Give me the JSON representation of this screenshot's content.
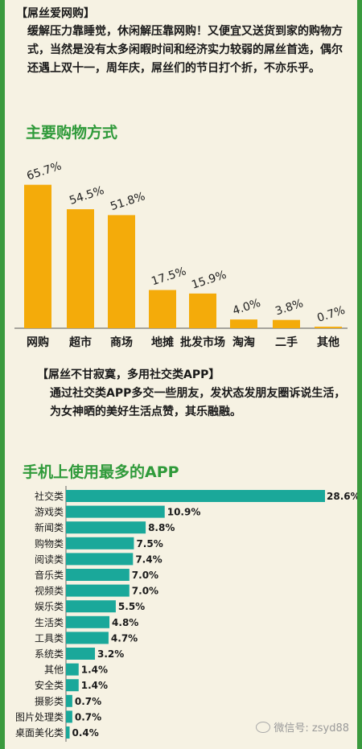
{
  "section1": {
    "heading": "【屌丝爱网购】",
    "paragraph": "缓解压力靠睡觉，休闲解压靠网购！又便宜又送货到家的购物方式，当然是没有太多闲暇时间和经济实力较弱的屌丝首选，偶尔还遇上双十一，周年庆，屌丝们的节日打个折，不亦乐乎。"
  },
  "section2": {
    "title": "主要购物方式"
  },
  "section3": {
    "heading": "【屌丝不甘寂寞，多用社交类APP】",
    "paragraph": "通过社交类APP多交一些朋友，发状态发朋友圈诉说生活，为女神晒的美好生活点赞，其乐融融。"
  },
  "section4": {
    "title": "手机上使用最多的APP"
  },
  "watermark": "微信号: zsyd88",
  "colors": {
    "bar": "#f4ab0a",
    "hbar": "#1aa89a",
    "title": "#2f9a3a"
  },
  "chart_data": [
    {
      "type": "bar",
      "categories": [
        "网购",
        "超市",
        "商场",
        "地摊",
        "批发市场",
        "淘淘",
        "二手",
        "其他"
      ],
      "values": [
        65.7,
        54.5,
        51.8,
        17.5,
        15.9,
        4.0,
        3.8,
        0.7
      ],
      "labels": [
        "65.7%",
        "54.5%",
        "51.8%",
        "17.5%",
        "15.9%",
        "4.0%",
        "3.8%",
        "0.7%"
      ],
      "title": "主要购物方式",
      "ylim": [
        0,
        70
      ]
    },
    {
      "type": "bar",
      "orientation": "horizontal",
      "categories": [
        "社交类",
        "游戏类",
        "新闻类",
        "购物类",
        "阅读类",
        "音乐类",
        "视频类",
        "娱乐类",
        "生活类",
        "工具类",
        "系统类",
        "其他",
        "安全类",
        "摄影类",
        "图片处理类",
        "桌面美化类"
      ],
      "values": [
        28.6,
        10.9,
        8.8,
        7.5,
        7.4,
        7.0,
        7.0,
        5.5,
        4.8,
        4.7,
        3.2,
        1.4,
        1.4,
        0.7,
        0.7,
        0.4
      ],
      "labels": [
        "28.6%",
        "10.9%",
        "8.8%",
        "7.5%",
        "7.4%",
        "7.0%",
        "7.0%",
        "5.5%",
        "4.8%",
        "4.7%",
        "3.2%",
        "1.4%",
        "1.4%",
        "0.7%",
        "0.7%",
        "0.4%"
      ],
      "title": "手机上使用最多的APP",
      "xlim": [
        0,
        28.6
      ]
    }
  ]
}
